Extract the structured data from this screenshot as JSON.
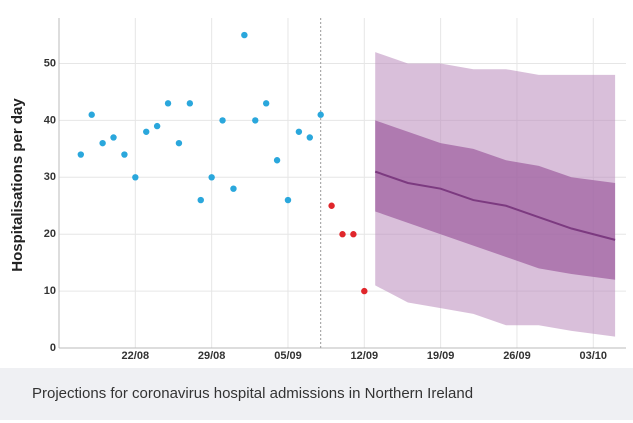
{
  "chart_data": {
    "type": "scatter",
    "y_label": "Hospitalisations per day",
    "caption": "Projections for coronavirus hospital admissions in Northern Ireland",
    "ylim": [
      0,
      58
    ],
    "yticks": [
      0,
      10,
      20,
      30,
      40,
      50
    ],
    "xlim": [
      "15/08",
      "06/10"
    ],
    "xticks": [
      "22/08",
      "29/08",
      "05/09",
      "12/09",
      "19/09",
      "26/09",
      "03/10"
    ],
    "grid": true,
    "observed": {
      "color": "#2aa7dc",
      "x": [
        "17/08",
        "18/08",
        "19/08",
        "20/08",
        "21/08",
        "22/08",
        "23/08",
        "24/08",
        "25/08",
        "26/08",
        "27/08",
        "28/08",
        "29/08",
        "30/08",
        "31/08",
        "01/09",
        "02/09",
        "03/09",
        "04/09",
        "05/09",
        "06/09",
        "07/09",
        "08/09"
      ],
      "values": [
        34,
        41,
        36,
        37,
        34,
        30,
        38,
        39,
        43,
        36,
        43,
        26,
        30,
        40,
        28,
        55,
        40,
        43,
        33,
        26,
        38,
        37,
        41
      ]
    },
    "recent": {
      "color": "#e0262b",
      "x": [
        "09/09",
        "10/09",
        "11/09",
        "12/09"
      ],
      "values": [
        25,
        20,
        20,
        10
      ]
    },
    "projection": {
      "x": [
        "13/09",
        "16/09",
        "19/09",
        "22/09",
        "25/09",
        "28/09",
        "01/10",
        "05/10"
      ],
      "outer_color": "#b98bbb",
      "inner_color": "#9c5c9e",
      "line_color": "#7c3a80",
      "outer_upper": [
        52,
        50,
        50,
        49,
        49,
        48,
        48,
        48
      ],
      "outer_lower": [
        11,
        8,
        7,
        6,
        4,
        4,
        3,
        2
      ],
      "inner_upper": [
        40,
        38,
        36,
        35,
        33,
        32,
        30,
        29
      ],
      "inner_lower": [
        24,
        22,
        20,
        18,
        16,
        14,
        13,
        12
      ],
      "median": [
        31,
        29,
        28,
        26,
        25,
        23,
        21,
        19
      ]
    },
    "cutoff": "08/09"
  }
}
